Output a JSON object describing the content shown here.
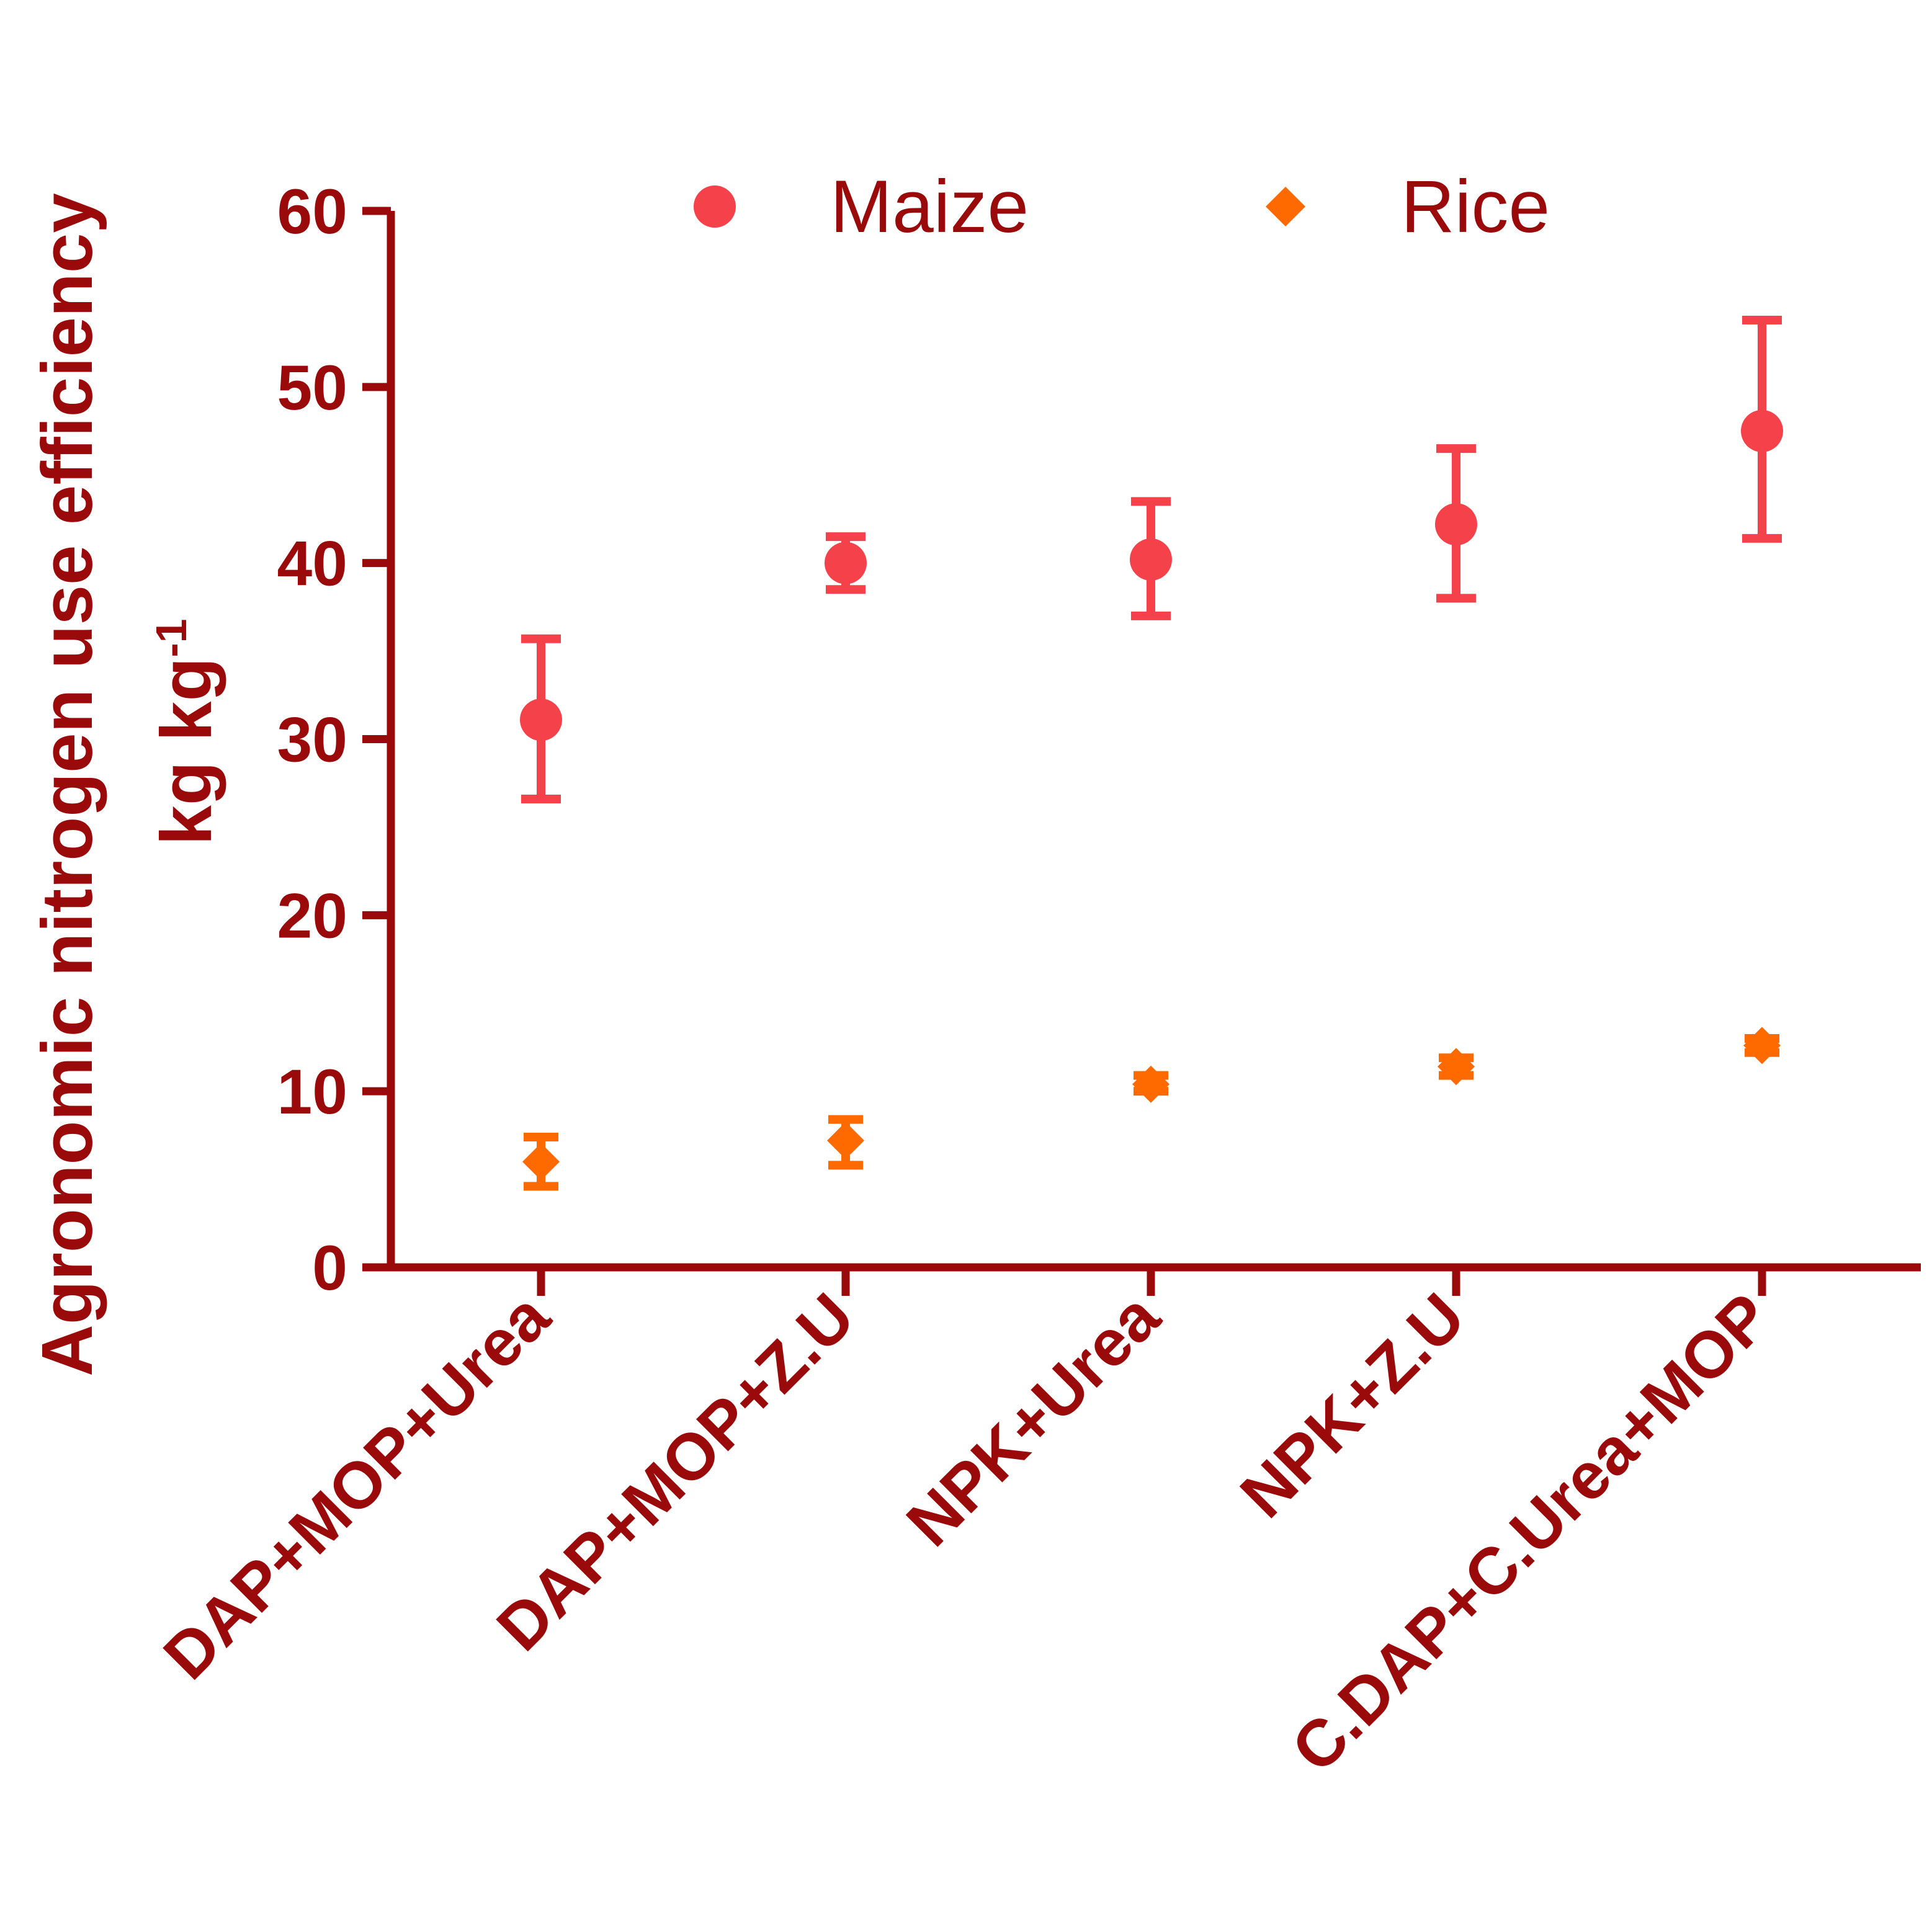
{
  "chart_data": {
    "type": "scatter",
    "categories": [
      "DAP+MOP+Urea",
      "DAP+MOP+Z.U",
      "NPK+Urea",
      "NPK+Z.U",
      "C.DAP+C.Urea+MOP"
    ],
    "series": [
      {
        "name": "Maize",
        "marker": "circle",
        "color": "#f5424a",
        "values": [
          31.1,
          40.0,
          40.2,
          42.2,
          47.5
        ],
        "error_low": [
          26.6,
          38.5,
          37.0,
          38.0,
          41.4
        ],
        "error_high": [
          35.7,
          41.5,
          43.5,
          46.5,
          53.8
        ]
      },
      {
        "name": "Rice",
        "marker": "diamond",
        "color": "#ff6a00",
        "values": [
          6.0,
          7.2,
          10.4,
          11.4,
          12.6
        ],
        "error_low": [
          4.6,
          5.8,
          10.0,
          10.9,
          12.2
        ],
        "error_high": [
          7.4,
          8.4,
          10.9,
          11.9,
          13.0
        ]
      }
    ],
    "ylabel_line1": "Agronomic nitrogen use efficiency",
    "ylabel_line2": "kg kg",
    "ylabel_sup": "-1",
    "xlabel": "",
    "ylim": [
      0,
      60
    ],
    "yticks": [
      0,
      10,
      20,
      30,
      40,
      50,
      60
    ],
    "grid": false,
    "legend_position": "top"
  },
  "colors": {
    "axis": "#9b0a0a",
    "maize": "#f5424a",
    "rice": "#ff6a00"
  }
}
